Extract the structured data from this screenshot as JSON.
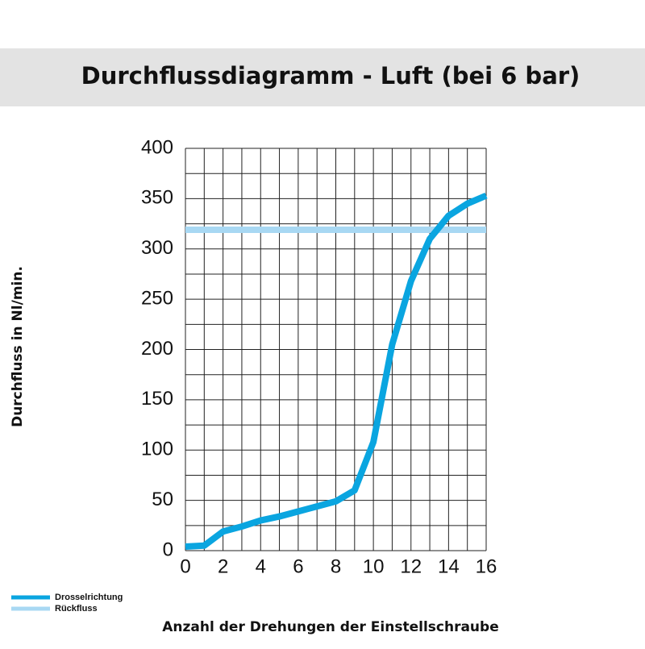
{
  "chart_data": {
    "type": "line",
    "title": "Durchflussdiagramm - Luft (bei 6 bar)",
    "x_label": "Anzahl der Drehungen der Einstellschraube",
    "y_label": "Durchfluss in Nl/min.",
    "x": [
      0,
      1,
      2,
      3,
      4,
      5,
      6,
      7,
      8,
      9,
      10,
      11,
      12,
      13,
      14,
      15,
      16
    ],
    "series": [
      {
        "name": "Drosselrichtung",
        "color": "#0aa5e0",
        "values": [
          4,
          5,
          19,
          24,
          30,
          34,
          39,
          44,
          49,
          60,
          108,
          205,
          268,
          310,
          333,
          345,
          353
        ]
      },
      {
        "name": "Rückfluss",
        "color": "#a8d8f3",
        "values": [
          319,
          319,
          319,
          319,
          319,
          319,
          319,
          319,
          319,
          319,
          319,
          319,
          319,
          319,
          319,
          319,
          319
        ]
      }
    ],
    "xlim": [
      0,
      16
    ],
    "xticks": [
      0,
      2,
      4,
      6,
      8,
      10,
      12,
      14,
      16
    ],
    "ylim": [
      0,
      400
    ],
    "yticks": [
      0,
      50,
      100,
      150,
      200,
      250,
      300,
      350,
      400
    ],
    "grid": true
  }
}
